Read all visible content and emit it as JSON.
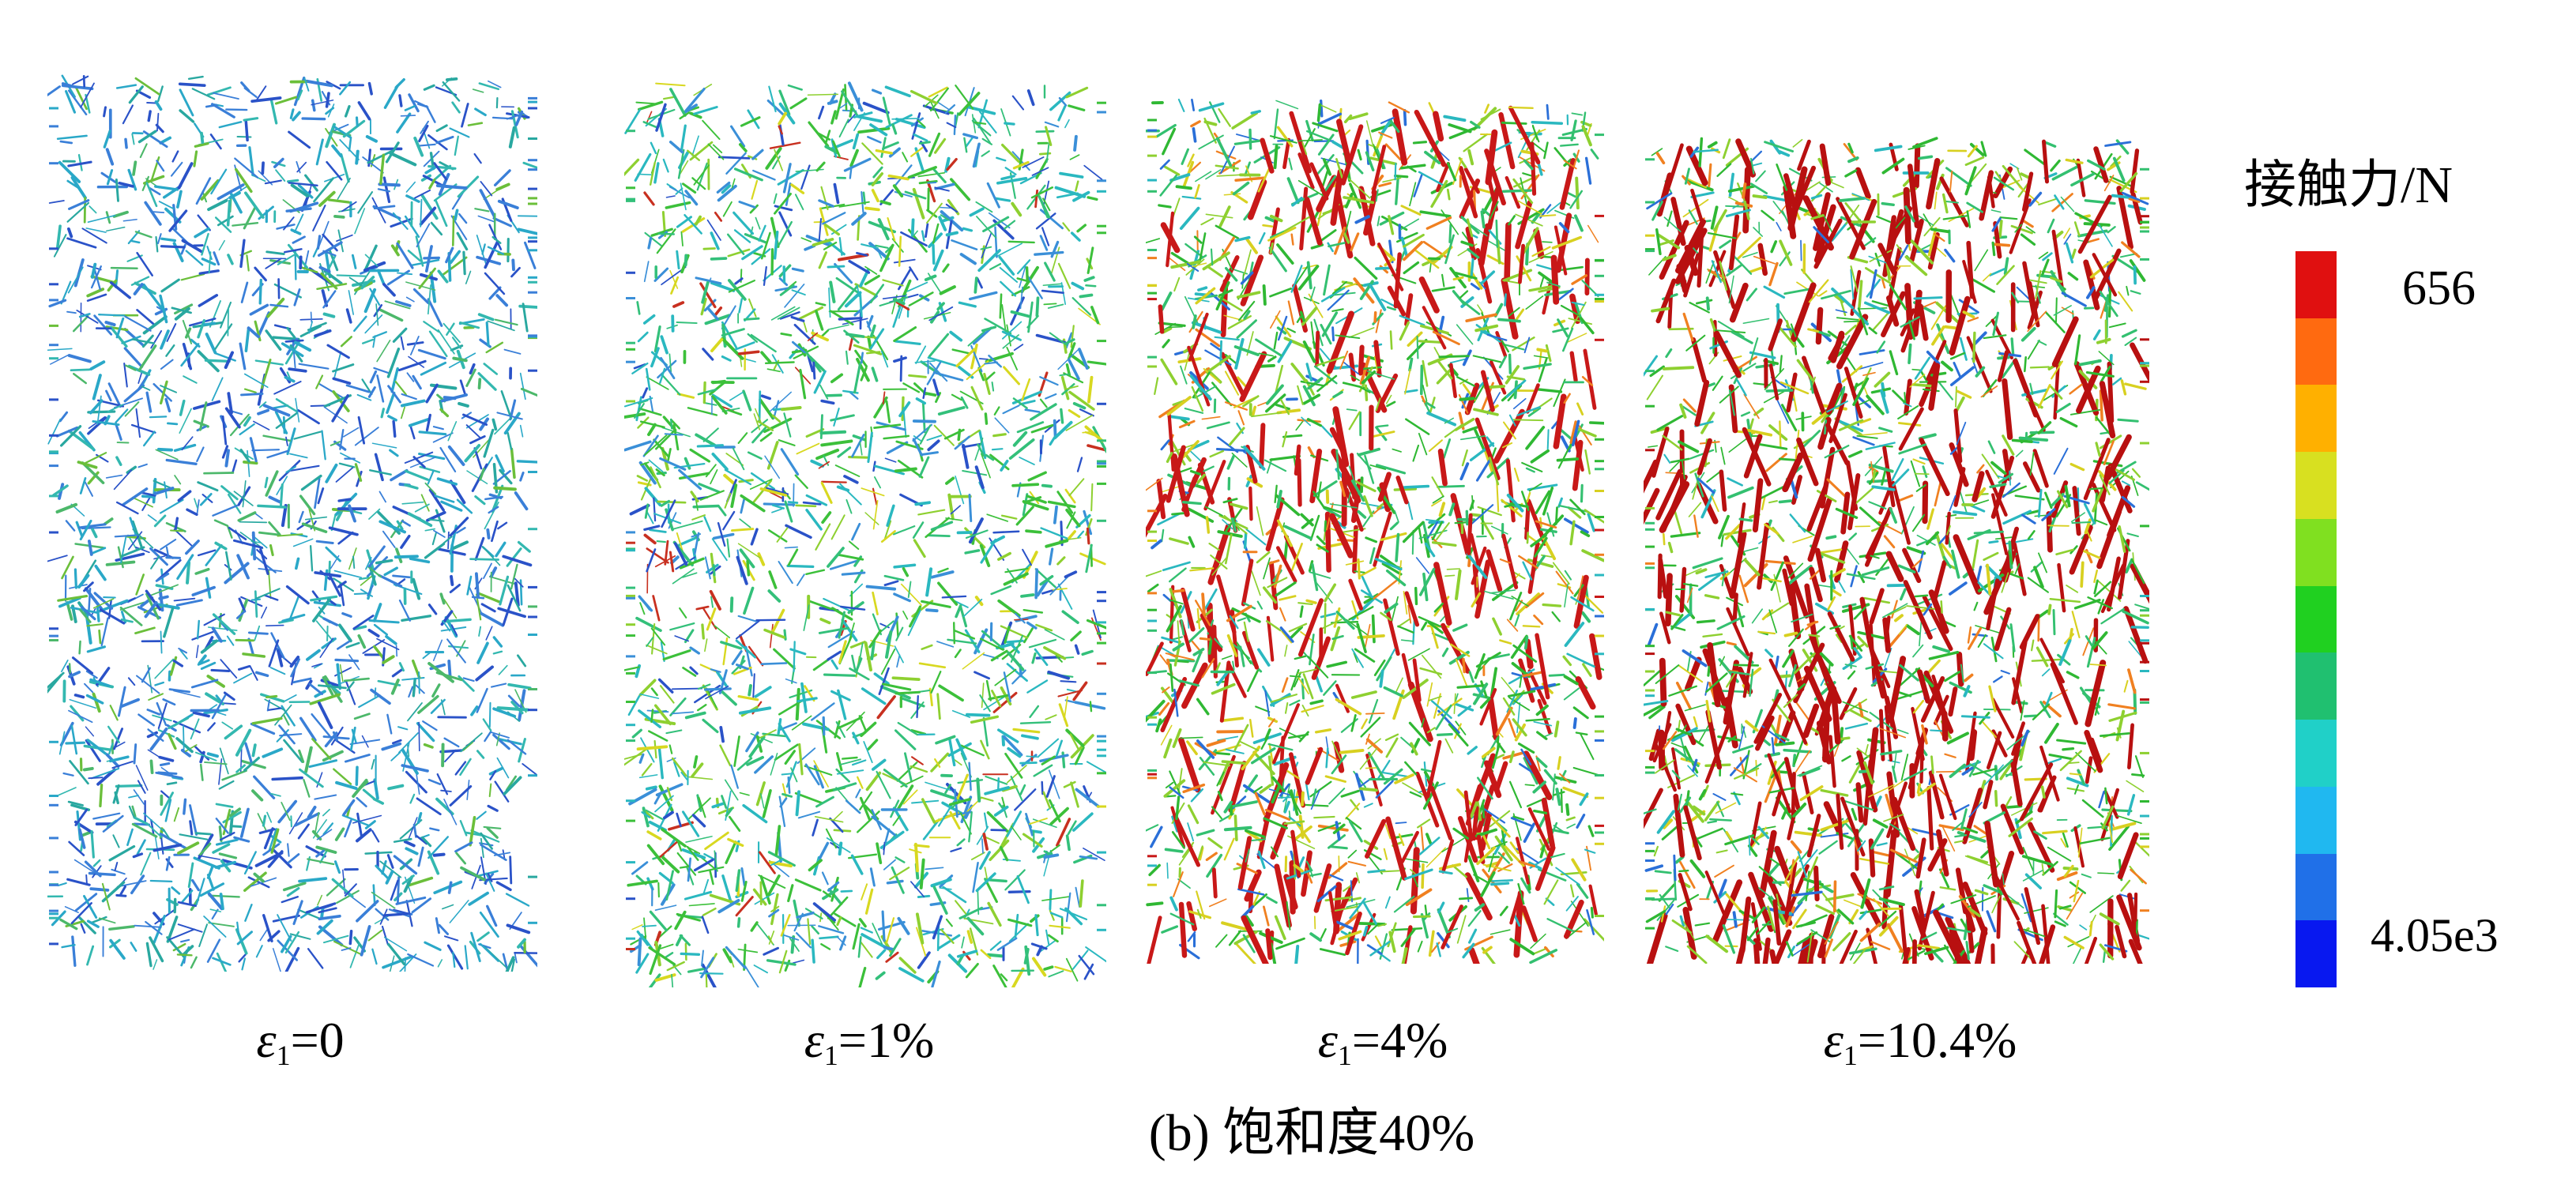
{
  "panels": [
    {
      "caption_main": "ε",
      "caption_sub": "1",
      "caption_rest": "=0",
      "palette": [
        "#2a52c8",
        "#3a7fd8",
        "#2aa8c8",
        "#33b8b0",
        "#29a8a0",
        "#4cb86a",
        "#6bbf3a"
      ],
      "weights": [
        22,
        22,
        20,
        12,
        10,
        8,
        6
      ]
    },
    {
      "caption_main": "ε",
      "caption_sub": "1",
      "caption_rest": "=1%",
      "palette": [
        "#2a52c8",
        "#3a8fd8",
        "#2ab8c0",
        "#33c07a",
        "#3cc03a",
        "#8ed030",
        "#d8d820",
        "#c83020"
      ],
      "weights": [
        10,
        14,
        18,
        20,
        20,
        10,
        5,
        3
      ]
    },
    {
      "caption_main": "ε",
      "caption_sub": "1",
      "caption_rest": "=4%",
      "palette": [
        "#2a6fd8",
        "#2ab8c0",
        "#33c070",
        "#2fb833",
        "#8ed030",
        "#d8d020",
        "#f08020",
        "#c81818"
      ],
      "weights": [
        6,
        10,
        18,
        22,
        16,
        10,
        6,
        12
      ]
    },
    {
      "caption_main": "ε",
      "caption_sub": "1",
      "caption_rest": "=10.4%",
      "palette": [
        "#2a6fd8",
        "#2ab8c0",
        "#33c070",
        "#2fb833",
        "#8ed030",
        "#d8d020",
        "#f08020",
        "#b81010"
      ],
      "weights": [
        5,
        8,
        16,
        20,
        14,
        9,
        6,
        22
      ]
    }
  ],
  "figure_caption": "(b) 饱和度40%",
  "legend": {
    "title": "接触力/N",
    "max_label": "656",
    "min_label": "4.05e3",
    "colors": [
      "#e01010",
      "#ff6a10",
      "#ffb000",
      "#d8e020",
      "#80e020",
      "#20d020",
      "#20c070",
      "#20d0c8",
      "#20b8f0",
      "#2070e8",
      "#0818f0"
    ]
  }
}
